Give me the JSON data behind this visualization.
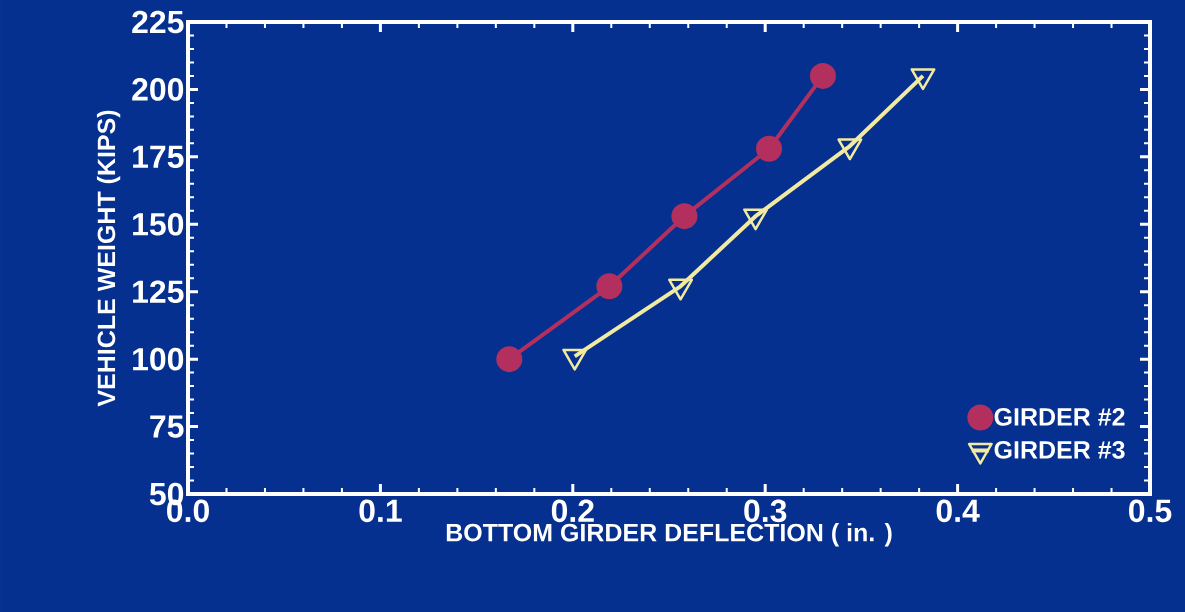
{
  "chart_data": {
    "type": "line",
    "xlabel": "BOTTOM GIRDER DEFLECTION ( in.  )",
    "ylabel": "VEHICLE WEIGHT (KIPS)",
    "xlim": [
      0,
      0.5
    ],
    "ylim": [
      50,
      225
    ],
    "xticks": [
      {
        "value": 0,
        "label": "0.0"
      },
      {
        "value": 0.1,
        "label": "0.1"
      },
      {
        "value": 0.2,
        "label": "0.2"
      },
      {
        "value": 0.3,
        "label": "0.3"
      },
      {
        "value": 0.4,
        "label": "0.4"
      },
      {
        "value": 0.5,
        "label": "0.5"
      }
    ],
    "yticks": [
      50,
      75,
      100,
      125,
      150,
      175,
      200,
      225
    ],
    "legend": "bottom right",
    "grid": false,
    "series": [
      {
        "name": "GIRDER #2",
        "color": "#b3305e",
        "marker": "circle",
        "x": [
          0.167,
          0.219,
          0.258,
          0.302,
          0.33
        ],
        "values": [
          100,
          127,
          153,
          178,
          205
        ]
      },
      {
        "name": "GIRDER #3",
        "color": "#f2eaa0",
        "marker": "triangle",
        "x": [
          0.201,
          0.256,
          0.295,
          0.344,
          0.382
        ],
        "values": [
          101,
          127,
          153,
          179,
          205
        ]
      }
    ]
  }
}
